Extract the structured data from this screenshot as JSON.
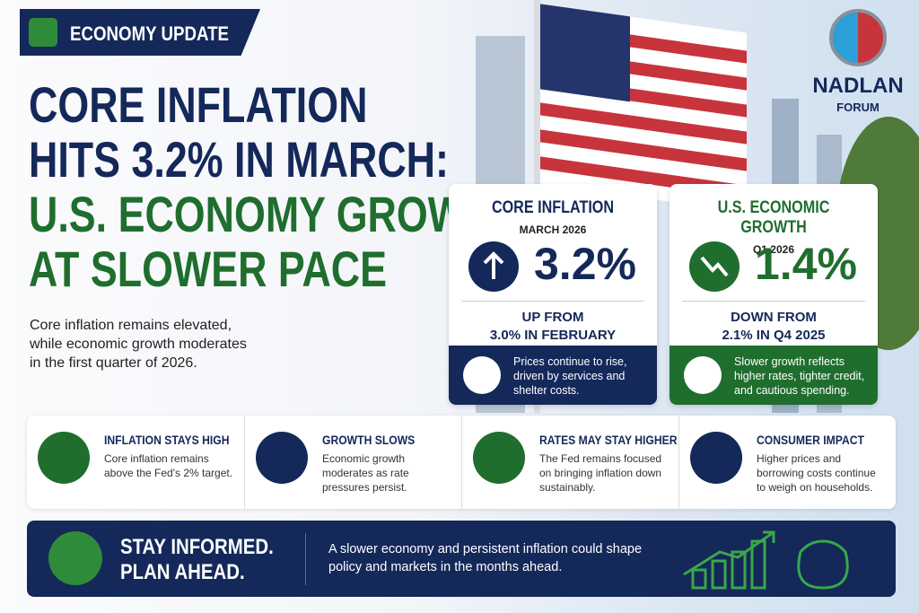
{
  "badge": "ECONOMY UPDATE",
  "headline": [
    "CORE INFLATION",
    "HITS 3.2% IN MARCH:",
    "U.S. ECONOMY GROWS",
    "AT SLOWER PACE"
  ],
  "intro": "Core inflation remains elevated, while economic growth moderates in the first quarter of 2026.",
  "logo": {
    "name": "NADLAN",
    "sub": "FORUM"
  },
  "cards": [
    {
      "title": "CORE INFLATION",
      "period": "MARCH 2026",
      "value": "3.2%",
      "change": [
        "UP FROM",
        "3.0% IN FEBRUARY"
      ],
      "note": "Prices continue to rise, driven by services and shelter costs."
    },
    {
      "title": "U.S. ECONOMIC GROWTH",
      "period": "Q1 2026",
      "value": "1.4%",
      "change": [
        "DOWN FROM",
        "2.1% IN Q4 2025"
      ],
      "note": "Slower growth reflects higher rates, tighter credit, and cautious spending."
    }
  ],
  "points": [
    {
      "title": "INFLATION STAYS HIGH",
      "text": "Core inflation remains above the Fed's 2% target."
    },
    {
      "title": "GROWTH SLOWS",
      "text": "Economic growth moderates as rate pressures persist."
    },
    {
      "title": "RATES MAY STAY HIGHER",
      "text": "The Fed remains focused on bringing inflation down sustainably."
    },
    {
      "title": "CONSUMER IMPACT",
      "text": "Higher prices and borrowing costs continue to weigh on households."
    }
  ],
  "footer": {
    "title": [
      "STAY INFORMED.",
      "PLAN AHEAD."
    ],
    "text": "A slower economy and persistent inflation could shape policy and markets in the months ahead."
  }
}
